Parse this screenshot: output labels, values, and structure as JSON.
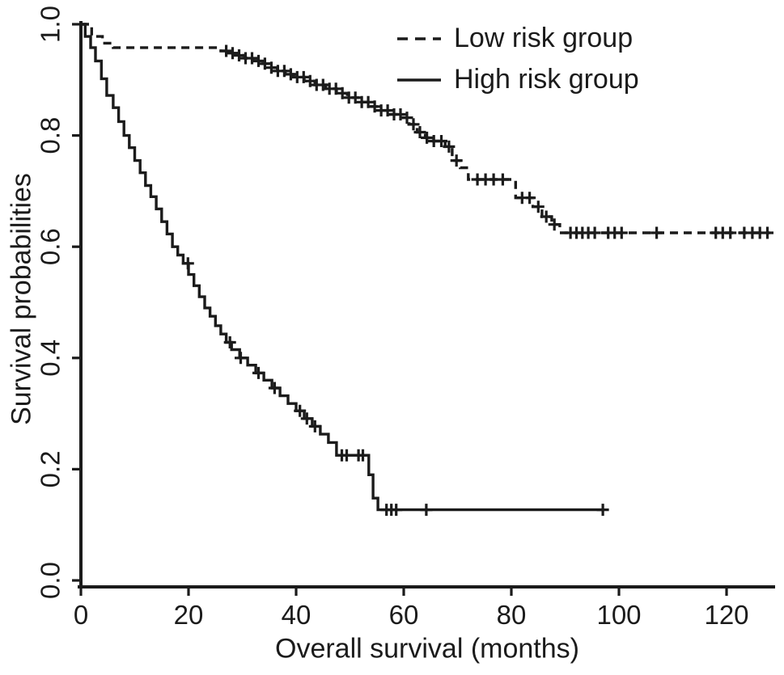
{
  "chart_data": {
    "type": "line",
    "chart_kind": "kaplan_meier_step_curve",
    "title": "",
    "xlabel": "Overall survival (months)",
    "ylabel": "Survival probabilities",
    "xlim": [
      0,
      130
    ],
    "ylim": [
      0.0,
      1.0
    ],
    "grid": false,
    "line_color": "#1b1b1b",
    "background_color": "#ffffff",
    "x_ticks": [
      {
        "value": 0,
        "label": "0"
      },
      {
        "value": 20,
        "label": "20"
      },
      {
        "value": 40,
        "label": "40"
      },
      {
        "value": 60,
        "label": "60"
      },
      {
        "value": 80,
        "label": "80"
      },
      {
        "value": 100,
        "label": "100"
      },
      {
        "value": 120,
        "label": "120"
      }
    ],
    "y_ticks": [
      {
        "value": 0.0,
        "label": "0.0"
      },
      {
        "value": 0.2,
        "label": "0.2"
      },
      {
        "value": 0.4,
        "label": "0.4"
      },
      {
        "value": 0.6,
        "label": "0.6"
      },
      {
        "value": 0.8,
        "label": "0.8"
      },
      {
        "value": 1.0,
        "label": "1.0"
      }
    ],
    "legend": {
      "position": "top-right",
      "entries": [
        {
          "label": "Low risk group",
          "line_style": "dashed"
        },
        {
          "label": "High risk group",
          "line_style": "solid"
        }
      ]
    },
    "series": [
      {
        "name": "Low risk group",
        "line_style": "dashed",
        "end_month": 128,
        "steps": [
          [
            0,
            1.0
          ],
          [
            2,
            0.978
          ],
          [
            4,
            0.966
          ],
          [
            6,
            0.958
          ],
          [
            26,
            0.952
          ],
          [
            27.5,
            0.948
          ],
          [
            29,
            0.944
          ],
          [
            30.5,
            0.939
          ],
          [
            32,
            0.934
          ],
          [
            33.5,
            0.929
          ],
          [
            35,
            0.922
          ],
          [
            36.5,
            0.916
          ],
          [
            38,
            0.91
          ],
          [
            39.5,
            0.905
          ],
          [
            41.5,
            0.898
          ],
          [
            43.5,
            0.891
          ],
          [
            45.5,
            0.884
          ],
          [
            47.5,
            0.876
          ],
          [
            49.5,
            0.868
          ],
          [
            51.5,
            0.86
          ],
          [
            53.5,
            0.852
          ],
          [
            55.5,
            0.845
          ],
          [
            57.5,
            0.838
          ],
          [
            59.5,
            0.832
          ],
          [
            61,
            0.82
          ],
          [
            62.5,
            0.806
          ],
          [
            64,
            0.796
          ],
          [
            65.5,
            0.79
          ],
          [
            67.7,
            0.78
          ],
          [
            69,
            0.755
          ],
          [
            70.5,
            0.742
          ],
          [
            72,
            0.721
          ],
          [
            80.8,
            0.688
          ],
          [
            84,
            0.672
          ],
          [
            85.7,
            0.654
          ],
          [
            87.5,
            0.64
          ],
          [
            89,
            0.625
          ]
        ],
        "censor_times": [
          27,
          28.2,
          29.4,
          30.6,
          31.8,
          33,
          34.2,
          35.4,
          36.6,
          37.8,
          39,
          40.2,
          41.4,
          42.6,
          43.8,
          45,
          46.2,
          47.4,
          48.6,
          49.8,
          51,
          52.2,
          53.4,
          54.6,
          55.8,
          57,
          58.2,
          59.4,
          60.6,
          61.8,
          63,
          64.3,
          65.6,
          67,
          68.4,
          69.8,
          73.7,
          75.2,
          76.7,
          78.4,
          82,
          83.4,
          85,
          86.5,
          88,
          91,
          92.1,
          93.2,
          94.3,
          95.5,
          98,
          99.2,
          100.5,
          107,
          118,
          119.3,
          120.7,
          123.3,
          124.8,
          126.2,
          127.6
        ]
      },
      {
        "name": "High risk group",
        "line_style": "solid",
        "end_month": 97,
        "steps": [
          [
            0,
            1.0
          ],
          [
            0.8,
            0.978
          ],
          [
            1.8,
            0.958
          ],
          [
            2.7,
            0.934
          ],
          [
            3.8,
            0.902
          ],
          [
            4.8,
            0.872
          ],
          [
            6,
            0.85
          ],
          [
            7,
            0.825
          ],
          [
            8,
            0.8
          ],
          [
            9,
            0.778
          ],
          [
            10,
            0.755
          ],
          [
            11,
            0.733
          ],
          [
            12,
            0.71
          ],
          [
            13,
            0.69
          ],
          [
            14,
            0.668
          ],
          [
            15,
            0.645
          ],
          [
            16,
            0.623
          ],
          [
            17,
            0.6
          ],
          [
            18,
            0.585
          ],
          [
            19,
            0.57
          ],
          [
            20,
            0.55
          ],
          [
            21,
            0.53
          ],
          [
            22,
            0.51
          ],
          [
            23,
            0.49
          ],
          [
            24,
            0.475
          ],
          [
            25,
            0.458
          ],
          [
            26,
            0.443
          ],
          [
            27,
            0.428
          ],
          [
            28,
            0.415
          ],
          [
            29.5,
            0.4
          ],
          [
            31,
            0.387
          ],
          [
            32.5,
            0.373
          ],
          [
            34,
            0.36
          ],
          [
            35.5,
            0.346
          ],
          [
            37,
            0.332
          ],
          [
            38.5,
            0.318
          ],
          [
            40,
            0.305
          ],
          [
            41.5,
            0.291
          ],
          [
            43,
            0.277
          ],
          [
            44.5,
            0.263
          ],
          [
            46,
            0.248
          ],
          [
            47.5,
            0.225
          ],
          [
            53.5,
            0.19
          ],
          [
            54.3,
            0.148
          ],
          [
            55.2,
            0.127
          ]
        ],
        "censor_times": [
          19.9,
          27.7,
          29.7,
          33,
          36,
          40.7,
          42,
          43.5,
          48.5,
          49.4,
          51.6,
          52.4,
          56.8,
          57.7,
          58.6,
          64.2,
          97
        ]
      }
    ]
  }
}
